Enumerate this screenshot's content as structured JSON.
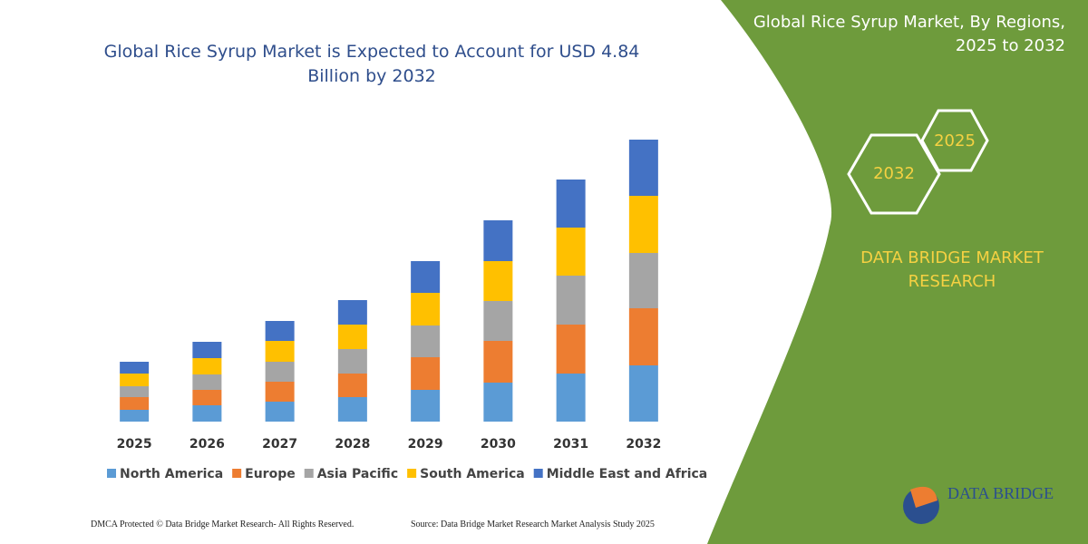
{
  "chart_data": {
    "type": "stacked_bar",
    "title": "Global Rice Syrup Market is Expected to Account for USD 4.84 Billion by 2032",
    "categories": [
      "2025",
      "2026",
      "2027",
      "2028",
      "2029",
      "2030",
      "2031",
      "2032"
    ],
    "series": [
      {
        "name": "North America",
        "color": "#5b9bd5",
        "values": [
          13,
          18,
          22,
          27,
          35,
          43,
          53,
          62
        ]
      },
      {
        "name": "Europe",
        "color": "#ed7d31",
        "values": [
          14,
          17,
          22,
          26,
          36,
          46,
          54,
          63
        ]
      },
      {
        "name": "Asia Pacific",
        "color": "#a5a5a5",
        "values": [
          12,
          17,
          22,
          27,
          35,
          44,
          54,
          61
        ]
      },
      {
        "name": "South America",
        "color": "#ffc000",
        "values": [
          14,
          18,
          23,
          27,
          36,
          44,
          53,
          63
        ]
      },
      {
        "name": "Middle East and Africa",
        "color": "#4472c4",
        "values": [
          13,
          18,
          22,
          27,
          35,
          45,
          53,
          62
        ]
      }
    ],
    "legend": "bottom"
  },
  "side_panel": {
    "title": "Global Rice Syrup Market, By Regions, 2025 to 2032",
    "hexagons": [
      "2032",
      "2025"
    ],
    "brand": "DATA BRIDGE MARKET RESEARCH"
  },
  "footer": {
    "left": "DMCA Protected © Data Bridge Market Research- All Rights Reserved.",
    "right": "Source: Data Bridge Market Research Market Analysis Study 2025"
  },
  "logo": "DATA BRIDGE"
}
